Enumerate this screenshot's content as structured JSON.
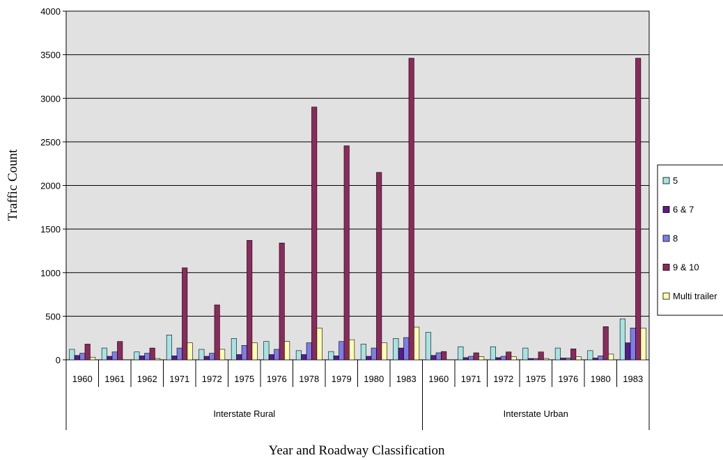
{
  "chart_data": {
    "type": "bar",
    "title": "",
    "xlabel": "Year and Roadway Classification",
    "ylabel": "Traffic Count",
    "ylim": [
      0,
      4000
    ],
    "yticks": [
      0,
      500,
      1000,
      1500,
      2000,
      2500,
      3000,
      3500,
      4000
    ],
    "grid": true,
    "legend_position": "right",
    "groups": [
      {
        "name": "Interstate Rural",
        "categories": [
          "1960",
          "1961",
          "1962",
          "1971",
          "1972",
          "1975",
          "1976",
          "1978",
          "1979",
          "1980",
          "1983"
        ]
      },
      {
        "name": "Interstate Urban",
        "categories": [
          "1960",
          "1971",
          "1972",
          "1975",
          "1976",
          "1980",
          "1983"
        ]
      }
    ],
    "series": [
      {
        "name": "5",
        "color": "#a6e3e3",
        "values": [
          120,
          135,
          90,
          285,
          120,
          245,
          210,
          105,
          95,
          180,
          245,
          315,
          150,
          150,
          135,
          135,
          105,
          470
        ]
      },
      {
        "name": "6 & 7",
        "color": "#5b1a8a",
        "values": [
          50,
          40,
          45,
          45,
          40,
          60,
          60,
          60,
          45,
          40,
          135,
          50,
          25,
          25,
          15,
          20,
          20,
          195
        ]
      },
      {
        "name": "8",
        "color": "#7b7ee8",
        "values": [
          75,
          90,
          75,
          135,
          75,
          165,
          120,
          195,
          210,
          135,
          255,
          80,
          40,
          40,
          15,
          20,
          45,
          365
        ]
      },
      {
        "name": "9 & 10",
        "color": "#8b2a5c",
        "values": [
          180,
          210,
          135,
          1055,
          630,
          1370,
          1340,
          2900,
          2455,
          2150,
          3460,
          95,
          80,
          90,
          90,
          125,
          380,
          3460
        ]
      },
      {
        "name": "Multi trailer",
        "color": "#ffffb0",
        "values": [
          30,
          0,
          15,
          195,
          120,
          195,
          210,
          365,
          230,
          195,
          375,
          0,
          35,
          35,
          15,
          35,
          65,
          365
        ]
      }
    ]
  }
}
